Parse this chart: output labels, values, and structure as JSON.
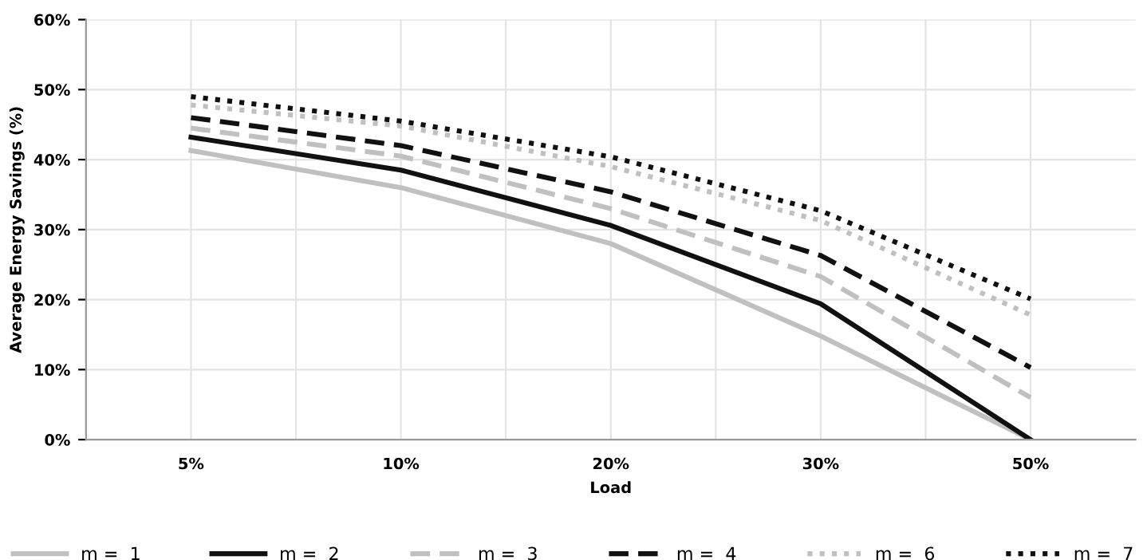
{
  "chart_data": {
    "type": "line",
    "xlabel": "Load",
    "ylabel": "Average Energy Savings (%)",
    "categories": [
      "5%",
      "10%",
      "20%",
      "30%",
      "50%"
    ],
    "ylim": [
      0,
      60
    ],
    "yticks": [
      {
        "value": 0,
        "label": "0%"
      },
      {
        "value": 10,
        "label": "10%"
      },
      {
        "value": 20,
        "label": "20%"
      },
      {
        "value": 30,
        "label": "30%"
      },
      {
        "value": 40,
        "label": "40%"
      },
      {
        "value": 50,
        "label": "50%"
      },
      {
        "value": 60,
        "label": "60%"
      }
    ],
    "grid": true,
    "legend": "bottom",
    "series": [
      {
        "name": "m =  1",
        "color": "#c0c0c0",
        "line_style": "solid",
        "values": [
          41.3,
          36,
          28,
          14.8,
          0
        ]
      },
      {
        "name": "m =  2",
        "color": "#111111",
        "line_style": "solid",
        "values": [
          43.2,
          38.5,
          30.6,
          19.4,
          0
        ]
      },
      {
        "name": "m =  3",
        "color": "#c0c0c0",
        "line_style": "dashed",
        "values": [
          44.5,
          40.5,
          33,
          23.3,
          6
        ]
      },
      {
        "name": "m =  4",
        "color": "#111111",
        "line_style": "dashed",
        "values": [
          46,
          42,
          35.4,
          26.3,
          10.3
        ]
      },
      {
        "name": "m =  6",
        "color": "#c0c0c0",
        "line_style": "dotted",
        "values": [
          47.8,
          44.8,
          39,
          31.3,
          17.8
        ]
      },
      {
        "name": "m =  7",
        "color": "#111111",
        "line_style": "dotted",
        "values": [
          49,
          45.5,
          40.4,
          32.7,
          20.1
        ]
      }
    ]
  }
}
